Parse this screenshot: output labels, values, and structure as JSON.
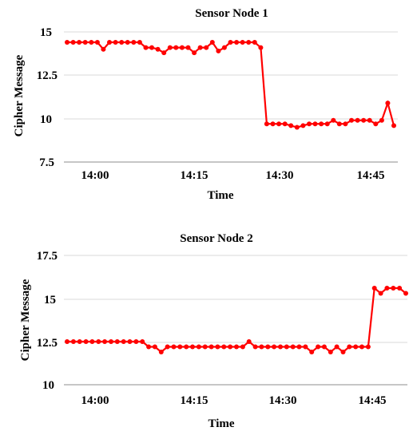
{
  "colors": {
    "series": "#ff0000",
    "grid": "#d9d9d9"
  },
  "chart_data": [
    {
      "type": "line",
      "title": "Sensor Node 1",
      "xlabel": "Time",
      "ylabel": "Cipher Message",
      "xlim": [
        "13:56",
        "14:50"
      ],
      "ylim": [
        7.5,
        15
      ],
      "x_ticks": [
        "14:00",
        "14:15",
        "14:30",
        "14:45"
      ],
      "y_ticks": [
        "15",
        "12.5",
        "10",
        "7.5"
      ],
      "grid": true,
      "series": [
        {
          "x": [
            "13:56",
            "13:57",
            "13:58",
            "13:59",
            "14:00",
            "14:01",
            "14:02",
            "14:03",
            "14:04",
            "14:05",
            "14:06",
            "14:07",
            "14:08",
            "14:09",
            "14:10",
            "14:11",
            "14:12",
            "14:13",
            "14:14",
            "14:15",
            "14:16",
            "14:17",
            "14:18",
            "14:19",
            "14:20",
            "14:21",
            "14:22",
            "14:23",
            "14:24",
            "14:25",
            "14:26",
            "14:27",
            "14:28",
            "14:29",
            "14:30",
            "14:31",
            "14:32",
            "14:33",
            "14:34",
            "14:35",
            "14:36",
            "14:37",
            "14:38",
            "14:39",
            "14:40",
            "14:41",
            "14:42",
            "14:43",
            "14:44",
            "14:45",
            "14:46",
            "14:47",
            "14:48",
            "14:49",
            "14:50"
          ],
          "y": [
            14.4,
            14.4,
            14.4,
            14.4,
            14.4,
            14.4,
            14.0,
            14.4,
            14.4,
            14.4,
            14.4,
            14.4,
            14.4,
            14.1,
            14.1,
            14.0,
            13.8,
            14.1,
            14.1,
            14.1,
            14.1,
            13.8,
            14.1,
            14.1,
            14.4,
            13.9,
            14.1,
            14.4,
            14.4,
            14.4,
            14.4,
            14.4,
            14.1,
            9.7,
            9.7,
            9.7,
            9.7,
            9.6,
            9.5,
            9.6,
            9.7,
            9.7,
            9.7,
            9.7,
            9.9,
            9.7,
            9.7,
            9.9,
            9.9,
            9.9,
            9.9,
            9.7,
            9.9,
            10.9,
            9.6
          ]
        }
      ]
    },
    {
      "type": "line",
      "title": "Sensor Node 2",
      "xlabel": "Time",
      "ylabel": "Cipher Message",
      "xlim": [
        "13:56",
        "14:50"
      ],
      "ylim": [
        10,
        17.5
      ],
      "x_ticks": [
        "14:00",
        "14:15",
        "14:30",
        "14:45"
      ],
      "y_ticks": [
        "17.5",
        "15",
        "12.5",
        "10"
      ],
      "grid": true,
      "series": [
        {
          "x": [
            "13:56",
            "13:57",
            "13:58",
            "13:59",
            "14:00",
            "14:01",
            "14:02",
            "14:03",
            "14:04",
            "14:05",
            "14:06",
            "14:07",
            "14:08",
            "14:09",
            "14:10",
            "14:11",
            "14:12",
            "14:13",
            "14:14",
            "14:15",
            "14:16",
            "14:17",
            "14:18",
            "14:19",
            "14:20",
            "14:21",
            "14:22",
            "14:23",
            "14:24",
            "14:25",
            "14:26",
            "14:27",
            "14:28",
            "14:29",
            "14:30",
            "14:31",
            "14:32",
            "14:33",
            "14:34",
            "14:35",
            "14:36",
            "14:37",
            "14:38",
            "14:39",
            "14:40",
            "14:41",
            "14:42",
            "14:43",
            "14:44",
            "14:45",
            "14:46",
            "14:47",
            "14:48",
            "14:49",
            "14:50"
          ],
          "y": [
            12.5,
            12.5,
            12.5,
            12.5,
            12.5,
            12.5,
            12.5,
            12.5,
            12.5,
            12.5,
            12.5,
            12.5,
            12.5,
            12.2,
            12.2,
            11.9,
            12.2,
            12.2,
            12.2,
            12.2,
            12.2,
            12.2,
            12.2,
            12.2,
            12.2,
            12.2,
            12.2,
            12.2,
            12.2,
            12.5,
            12.2,
            12.2,
            12.2,
            12.2,
            12.2,
            12.2,
            12.2,
            12.2,
            12.2,
            11.9,
            12.2,
            12.2,
            11.9,
            12.2,
            11.9,
            12.2,
            12.2,
            12.2,
            12.2,
            15.6,
            15.3,
            15.6,
            15.6,
            15.6,
            15.3
          ]
        }
      ]
    }
  ]
}
